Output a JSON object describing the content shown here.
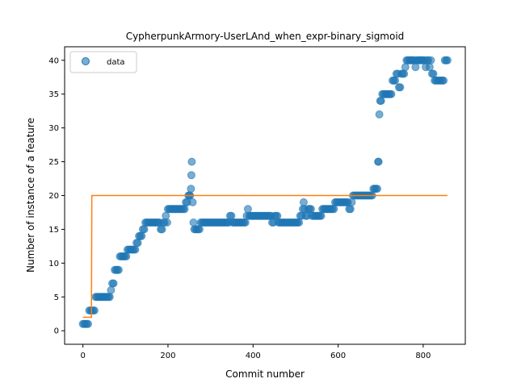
{
  "chart_data": {
    "type": "scatter",
    "title": "CypherpunkArmory-UserLAnd_when_expr-binary_sigmoid",
    "xlabel": "Commit number",
    "ylabel": "Number of instance of a feature",
    "xlim": [
      -43,
      899
    ],
    "ylim": [
      -2,
      42
    ],
    "xticks": [
      0,
      200,
      400,
      600,
      800
    ],
    "yticks": [
      0,
      5,
      10,
      15,
      20,
      25,
      30,
      35,
      40
    ],
    "legend": {
      "position": "top-left",
      "entries": [
        "data"
      ]
    },
    "colors": {
      "data": "#1f77b4",
      "fit": "#ff7f0e"
    },
    "series": [
      {
        "name": "data",
        "style": "markers",
        "points": [
          [
            0,
            1
          ],
          [
            3,
            1
          ],
          [
            6,
            1
          ],
          [
            9,
            1
          ],
          [
            12,
            1
          ],
          [
            15,
            3
          ],
          [
            18,
            3
          ],
          [
            21,
            3
          ],
          [
            24,
            3
          ],
          [
            27,
            3
          ],
          [
            30,
            5
          ],
          [
            33,
            5
          ],
          [
            36,
            5
          ],
          [
            39,
            5
          ],
          [
            42,
            5
          ],
          [
            45,
            5
          ],
          [
            48,
            5
          ],
          [
            51,
            5
          ],
          [
            54,
            5
          ],
          [
            57,
            5
          ],
          [
            60,
            5
          ],
          [
            63,
            5
          ],
          [
            66,
            6
          ],
          [
            69,
            7
          ],
          [
            72,
            7
          ],
          [
            75,
            9
          ],
          [
            78,
            9
          ],
          [
            81,
            9
          ],
          [
            84,
            9
          ],
          [
            87,
            11
          ],
          [
            90,
            11
          ],
          [
            93,
            11
          ],
          [
            96,
            11
          ],
          [
            99,
            11
          ],
          [
            102,
            11
          ],
          [
            105,
            12
          ],
          [
            108,
            12
          ],
          [
            111,
            12
          ],
          [
            114,
            12
          ],
          [
            117,
            12
          ],
          [
            120,
            12
          ],
          [
            123,
            12
          ],
          [
            126,
            13
          ],
          [
            129,
            13
          ],
          [
            132,
            14
          ],
          [
            135,
            14
          ],
          [
            138,
            14
          ],
          [
            141,
            15
          ],
          [
            144,
            15
          ],
          [
            147,
            16
          ],
          [
            150,
            16
          ],
          [
            153,
            16
          ],
          [
            156,
            16
          ],
          [
            159,
            16
          ],
          [
            162,
            16
          ],
          [
            165,
            16
          ],
          [
            168,
            16
          ],
          [
            171,
            16
          ],
          [
            174,
            16
          ],
          [
            177,
            16
          ],
          [
            180,
            16
          ],
          [
            183,
            15
          ],
          [
            186,
            15
          ],
          [
            189,
            16
          ],
          [
            192,
            16
          ],
          [
            195,
            17
          ],
          [
            198,
            16
          ],
          [
            200,
            18
          ],
          [
            203,
            18
          ],
          [
            206,
            18
          ],
          [
            209,
            18
          ],
          [
            212,
            18
          ],
          [
            215,
            18
          ],
          [
            218,
            18
          ],
          [
            221,
            18
          ],
          [
            224,
            18
          ],
          [
            227,
            18
          ],
          [
            230,
            18
          ],
          [
            233,
            18
          ],
          [
            236,
            18
          ],
          [
            239,
            18
          ],
          [
            242,
            19
          ],
          [
            245,
            19
          ],
          [
            248,
            20
          ],
          [
            250,
            20
          ],
          [
            252,
            20
          ],
          [
            254,
            21
          ],
          [
            255,
            23
          ],
          [
            256,
            25
          ],
          [
            258,
            19
          ],
          [
            260,
            16
          ],
          [
            262,
            15
          ],
          [
            265,
            15
          ],
          [
            268,
            15
          ],
          [
            271,
            15
          ],
          [
            274,
            15
          ],
          [
            277,
            16
          ],
          [
            280,
            16
          ],
          [
            283,
            16
          ],
          [
            286,
            16
          ],
          [
            289,
            16
          ],
          [
            292,
            16
          ],
          [
            295,
            16
          ],
          [
            298,
            16
          ],
          [
            301,
            16
          ],
          [
            304,
            16
          ],
          [
            307,
            16
          ],
          [
            310,
            16
          ],
          [
            313,
            16
          ],
          [
            316,
            16
          ],
          [
            319,
            16
          ],
          [
            322,
            16
          ],
          [
            325,
            16
          ],
          [
            328,
            16
          ],
          [
            331,
            16
          ],
          [
            334,
            16
          ],
          [
            337,
            16
          ],
          [
            340,
            16
          ],
          [
            343,
            16
          ],
          [
            346,
            17
          ],
          [
            349,
            17
          ],
          [
            352,
            16
          ],
          [
            355,
            16
          ],
          [
            358,
            16
          ],
          [
            361,
            16
          ],
          [
            364,
            16
          ],
          [
            367,
            16
          ],
          [
            370,
            16
          ],
          [
            373,
            16
          ],
          [
            376,
            16
          ],
          [
            379,
            16
          ],
          [
            382,
            16
          ],
          [
            385,
            17
          ],
          [
            388,
            18
          ],
          [
            391,
            17
          ],
          [
            394,
            17
          ],
          [
            397,
            17
          ],
          [
            400,
            17
          ],
          [
            403,
            17
          ],
          [
            406,
            17
          ],
          [
            409,
            17
          ],
          [
            412,
            17
          ],
          [
            415,
            17
          ],
          [
            418,
            17
          ],
          [
            421,
            17
          ],
          [
            424,
            17
          ],
          [
            427,
            17
          ],
          [
            430,
            17
          ],
          [
            433,
            17
          ],
          [
            436,
            17
          ],
          [
            439,
            17
          ],
          [
            442,
            17
          ],
          [
            445,
            16
          ],
          [
            448,
            16
          ],
          [
            451,
            17
          ],
          [
            454,
            17
          ],
          [
            457,
            17
          ],
          [
            460,
            16
          ],
          [
            463,
            16
          ],
          [
            466,
            16
          ],
          [
            469,
            16
          ],
          [
            472,
            16
          ],
          [
            475,
            16
          ],
          [
            478,
            16
          ],
          [
            481,
            16
          ],
          [
            484,
            16
          ],
          [
            487,
            16
          ],
          [
            490,
            16
          ],
          [
            493,
            16
          ],
          [
            496,
            16
          ],
          [
            499,
            16
          ],
          [
            502,
            16
          ],
          [
            505,
            16
          ],
          [
            508,
            16
          ],
          [
            511,
            17
          ],
          [
            514,
            17
          ],
          [
            517,
            18
          ],
          [
            519,
            19
          ],
          [
            521,
            18
          ],
          [
            524,
            17
          ],
          [
            527,
            17
          ],
          [
            530,
            18
          ],
          [
            533,
            18
          ],
          [
            536,
            18
          ],
          [
            539,
            17
          ],
          [
            542,
            17
          ],
          [
            545,
            17
          ],
          [
            548,
            17
          ],
          [
            551,
            17
          ],
          [
            554,
            17
          ],
          [
            557,
            17
          ],
          [
            560,
            17
          ],
          [
            563,
            18
          ],
          [
            566,
            18
          ],
          [
            569,
            18
          ],
          [
            572,
            18
          ],
          [
            575,
            18
          ],
          [
            578,
            18
          ],
          [
            581,
            18
          ],
          [
            584,
            18
          ],
          [
            587,
            18
          ],
          [
            590,
            18
          ],
          [
            593,
            19
          ],
          [
            596,
            19
          ],
          [
            599,
            19
          ],
          [
            602,
            19
          ],
          [
            605,
            19
          ],
          [
            608,
            19
          ],
          [
            611,
            19
          ],
          [
            614,
            19
          ],
          [
            617,
            19
          ],
          [
            620,
            19
          ],
          [
            623,
            19
          ],
          [
            626,
            18
          ],
          [
            629,
            18
          ],
          [
            632,
            19
          ],
          [
            635,
            20
          ],
          [
            638,
            20
          ],
          [
            641,
            20
          ],
          [
            644,
            20
          ],
          [
            647,
            20
          ],
          [
            650,
            20
          ],
          [
            653,
            20
          ],
          [
            656,
            20
          ],
          [
            659,
            20
          ],
          [
            662,
            20
          ],
          [
            665,
            20
          ],
          [
            668,
            20
          ],
          [
            671,
            20
          ],
          [
            674,
            20
          ],
          [
            677,
            20
          ],
          [
            680,
            20
          ],
          [
            683,
            21
          ],
          [
            686,
            21
          ],
          [
            689,
            21
          ],
          [
            692,
            21
          ],
          [
            694,
            25
          ],
          [
            695,
            25
          ],
          [
            697,
            32
          ],
          [
            699,
            34
          ],
          [
            701,
            34
          ],
          [
            704,
            35
          ],
          [
            707,
            35
          ],
          [
            710,
            35
          ],
          [
            713,
            35
          ],
          [
            716,
            35
          ],
          [
            719,
            35
          ],
          [
            722,
            35
          ],
          [
            725,
            35
          ],
          [
            728,
            37
          ],
          [
            731,
            37
          ],
          [
            734,
            37
          ],
          [
            737,
            38
          ],
          [
            740,
            38
          ],
          [
            743,
            36
          ],
          [
            746,
            36
          ],
          [
            749,
            38
          ],
          [
            752,
            38
          ],
          [
            755,
            38
          ],
          [
            758,
            39
          ],
          [
            761,
            40
          ],
          [
            764,
            40
          ],
          [
            767,
            40
          ],
          [
            770,
            40
          ],
          [
            773,
            40
          ],
          [
            776,
            40
          ],
          [
            779,
            40
          ],
          [
            782,
            39
          ],
          [
            785,
            40
          ],
          [
            788,
            40
          ],
          [
            791,
            40
          ],
          [
            794,
            40
          ],
          [
            797,
            40
          ],
          [
            800,
            40
          ],
          [
            803,
            40
          ],
          [
            806,
            39
          ],
          [
            809,
            40
          ],
          [
            812,
            40
          ],
          [
            815,
            39
          ],
          [
            818,
            40
          ],
          [
            821,
            38
          ],
          [
            824,
            38
          ],
          [
            827,
            37
          ],
          [
            830,
            37
          ],
          [
            833,
            37
          ],
          [
            836,
            37
          ],
          [
            839,
            37
          ],
          [
            842,
            37
          ],
          [
            845,
            37
          ],
          [
            848,
            37
          ],
          [
            851,
            40
          ],
          [
            854,
            40
          ],
          [
            857,
            40
          ]
        ]
      },
      {
        "style": "line",
        "points": [
          [
            0,
            2
          ],
          [
            20,
            2
          ],
          [
            21,
            20
          ],
          [
            857,
            20
          ]
        ]
      }
    ]
  }
}
